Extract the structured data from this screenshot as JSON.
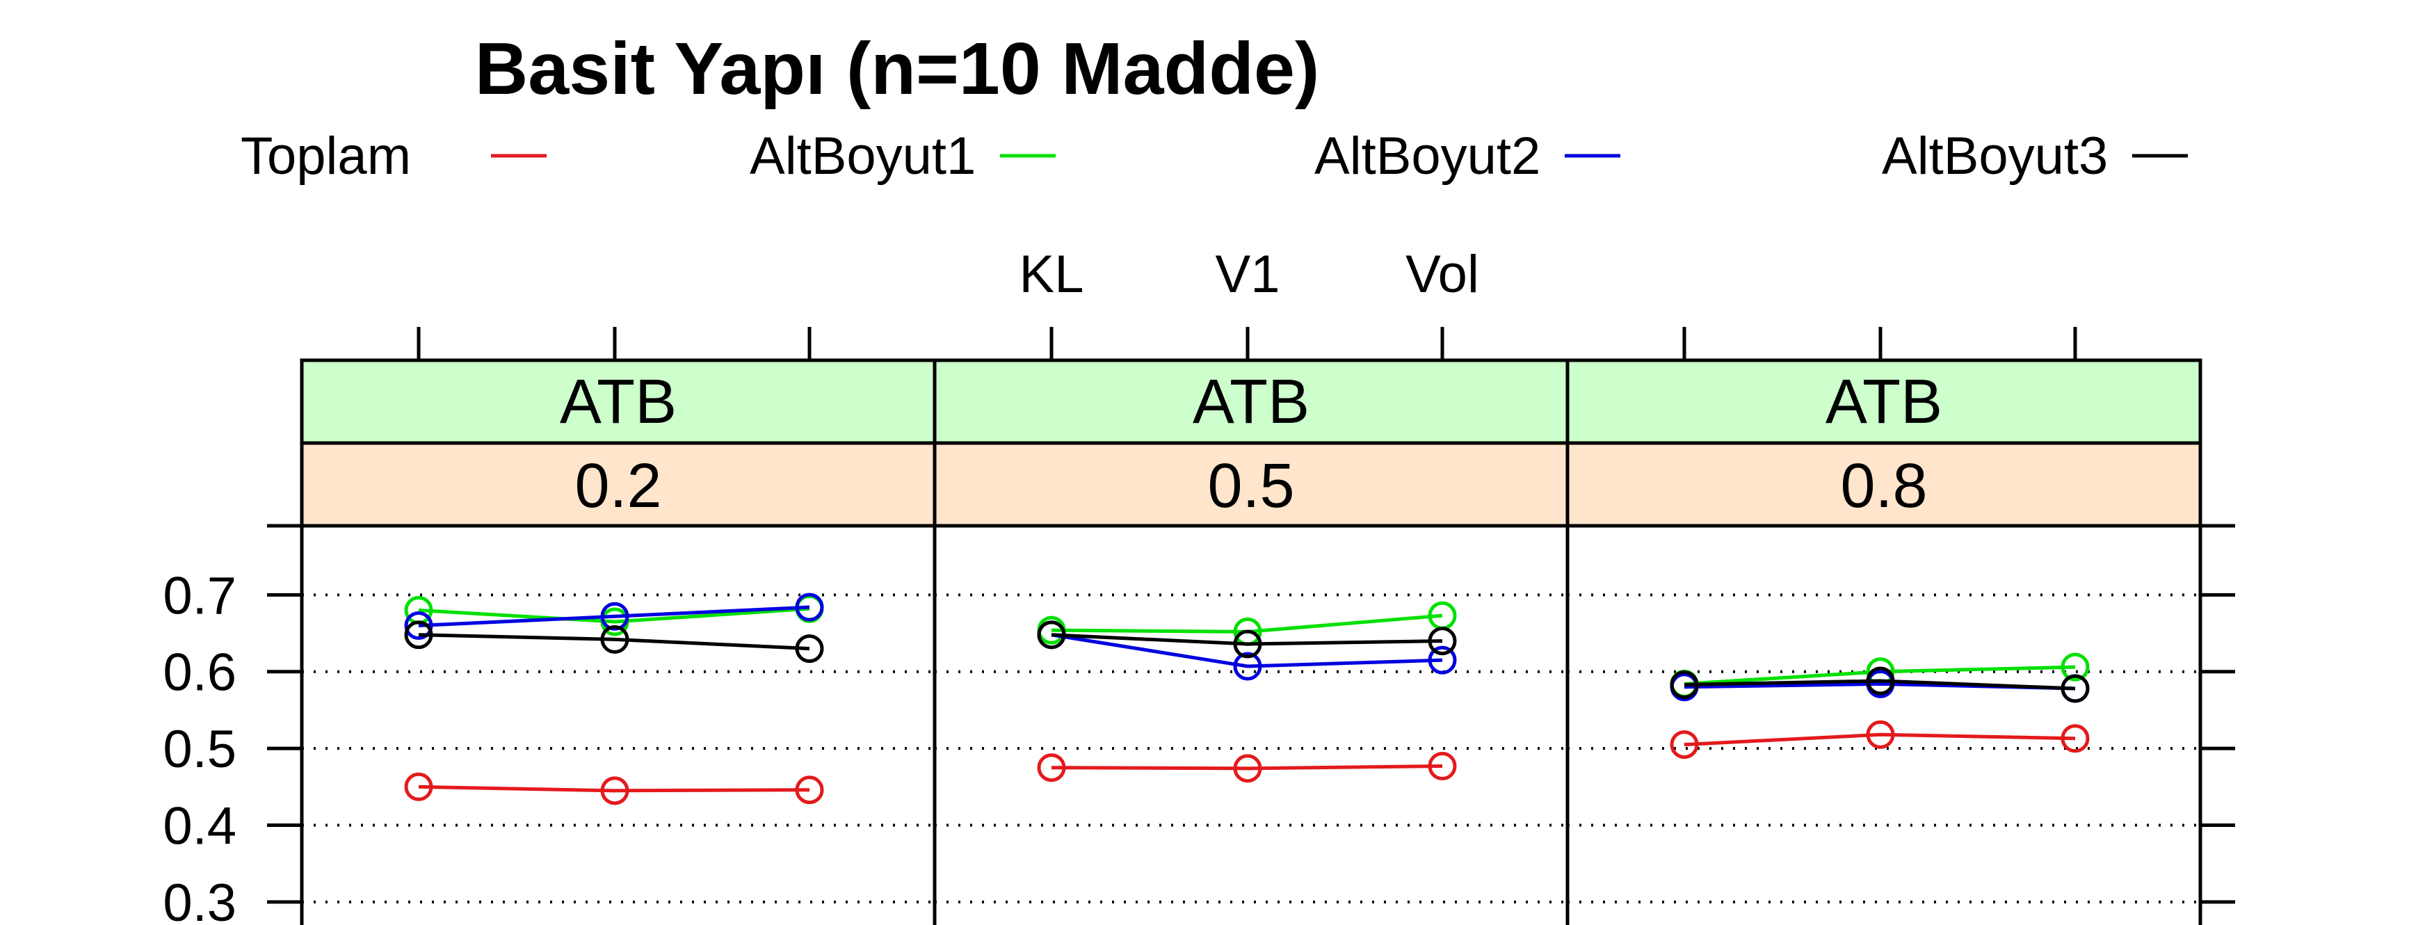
{
  "chart_data": {
    "type": "line",
    "title": "Basit Yapı (n=10 Madde)",
    "xlabel": "",
    "ylabel": "",
    "x_categories": [
      "KL",
      "V1",
      "Vol"
    ],
    "y_ticks": [
      "0.3",
      "0.4",
      "0.5",
      "0.6",
      "0.7"
    ],
    "ylim": [
      0.27,
      0.79
    ],
    "grid": true,
    "legend_position": "top",
    "legend": [
      {
        "name": "Toplam",
        "color": "#e31a1c"
      },
      {
        "name": "AltBoyut1",
        "color": "#00e000"
      },
      {
        "name": "AltBoyut2",
        "color": "#0000e0"
      },
      {
        "name": "AltBoyut3",
        "color": "#000000"
      }
    ],
    "strip_colors": {
      "top": "#ccffcc",
      "bottom": "#ffe5cc"
    },
    "panels": [
      {
        "strip_top": "ATB",
        "strip_bottom": "0.2",
        "series": [
          {
            "name": "Toplam",
            "values": [
              0.45,
              0.445,
              0.446
            ]
          },
          {
            "name": "AltBoyut1",
            "values": [
              0.68,
              0.665,
              0.682
            ]
          },
          {
            "name": "AltBoyut2",
            "values": [
              0.66,
              0.672,
              0.684
            ]
          },
          {
            "name": "AltBoyut3",
            "values": [
              0.648,
              0.642,
              0.63
            ]
          }
        ]
      },
      {
        "strip_top": "ATB",
        "strip_bottom": "0.5",
        "series": [
          {
            "name": "Toplam",
            "values": [
              0.475,
              0.474,
              0.477
            ]
          },
          {
            "name": "AltBoyut1",
            "values": [
              0.654,
              0.652,
              0.673
            ]
          },
          {
            "name": "AltBoyut2",
            "values": [
              0.648,
              0.607,
              0.615
            ]
          },
          {
            "name": "AltBoyut3",
            "values": [
              0.648,
              0.636,
              0.64
            ]
          }
        ]
      },
      {
        "strip_top": "ATB",
        "strip_bottom": "0.8",
        "series": [
          {
            "name": "Toplam",
            "values": [
              0.505,
              0.518,
              0.513
            ]
          },
          {
            "name": "AltBoyut1",
            "values": [
              0.584,
              0.6,
              0.606
            ]
          },
          {
            "name": "AltBoyut2",
            "values": [
              0.58,
              0.584,
              0.578
            ]
          },
          {
            "name": "AltBoyut3",
            "values": [
              0.583,
              0.588,
              0.578
            ]
          }
        ]
      }
    ]
  }
}
